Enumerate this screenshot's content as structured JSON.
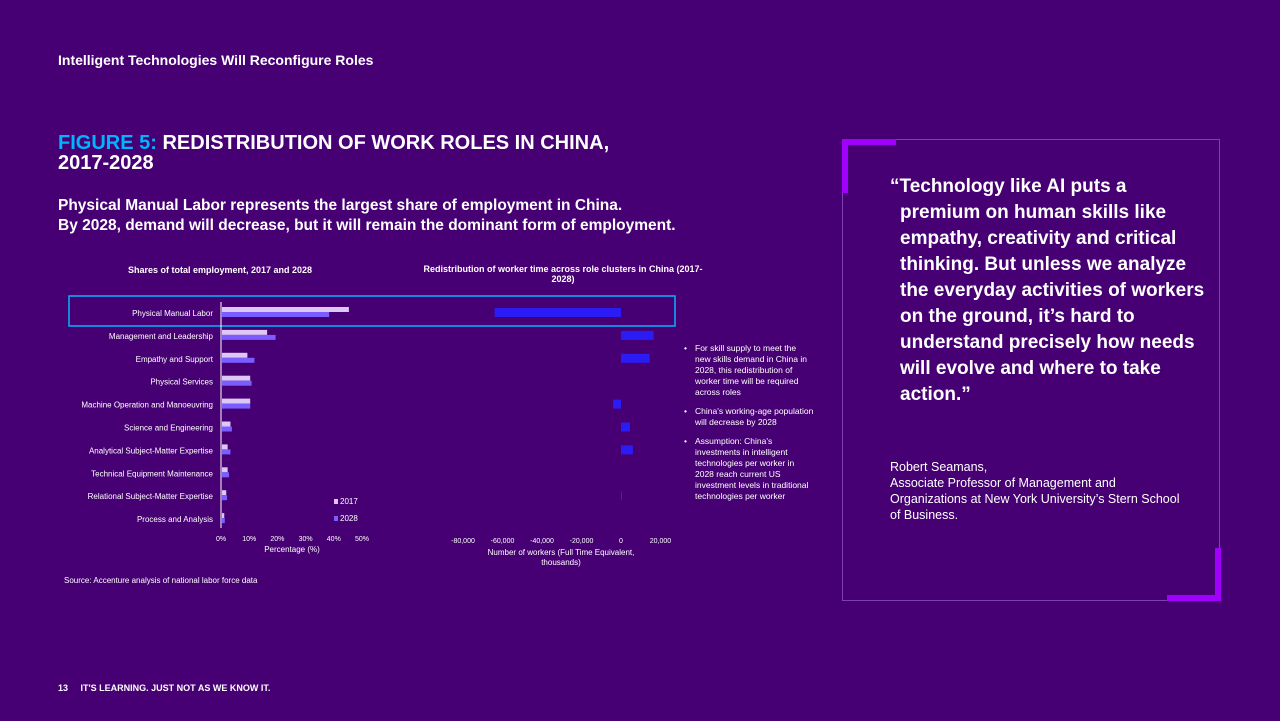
{
  "header": {
    "section_title": "Intelligent Technologies  Will Reconfigure Roles"
  },
  "figure": {
    "label": "FIGURE 5:",
    "title": "REDISTRIBUTION OF WORK ROLES IN CHINA, 2017-2028",
    "subtitle_line1": "Physical Manual Labor represents the largest share of employment in China.",
    "subtitle_line2": "By 2028, demand will decrease, but it will remain the dominant form of employment."
  },
  "chart_data": [
    {
      "type": "bar",
      "orientation": "horizontal",
      "title": "Shares of total employment, 2017 and 2028",
      "xlabel": "Percentage (%)",
      "categories": [
        "Physical Manual Labor",
        "Management and Leadership",
        "Empathy and Support",
        "Physical Services",
        "Machine Operation and Manoeuvring",
        "Science and Engineering",
        "Analytical Subject-Matter Expertise",
        "Technical Equipment Maintenance",
        "Relational Subject-Matter Expertise",
        "Process and Analysis"
      ],
      "series": [
        {
          "name": "2017",
          "color": "#dcc7f5",
          "values": [
            45,
            16,
            9,
            10,
            10,
            3,
            2,
            2,
            1.5,
            0.8
          ]
        },
        {
          "name": "2028",
          "color": "#7b5cff",
          "values": [
            38,
            19,
            11.5,
            10.5,
            10,
            3.5,
            3,
            2.5,
            1.8,
            1
          ]
        }
      ],
      "xlim": [
        0,
        50
      ],
      "xticks": [
        "0%",
        "10%",
        "20%",
        "30%",
        "40%",
        "50%"
      ],
      "legend": "bottom-right"
    },
    {
      "type": "bar",
      "orientation": "horizontal",
      "title": "Redistribution of worker time across role clusters in China (2017-2028)",
      "xlabel": "Number of workers (Full Time Equivalent, thousands)",
      "categories": [
        "Physical Manual Labor",
        "Management and Leadership",
        "Empathy and Support",
        "Physical Services",
        "Machine Operation and Manoeuvring",
        "Science and Engineering",
        "Analytical Subject-Matter Expertise",
        "Technical Equipment Maintenance",
        "Relational Subject-Matter Expertise",
        "Process and Analysis"
      ],
      "series": [
        {
          "color": "#2b1cf5",
          "values": [
            -64000,
            16500,
            14500,
            0,
            -4000,
            4500,
            6000,
            0,
            200,
            0
          ]
        }
      ],
      "xlim": [
        -80000,
        20000
      ],
      "xticks": [
        "-80,000",
        "-60,000",
        "-40,000",
        "-20,000",
        "0",
        "20,000"
      ]
    }
  ],
  "notes": [
    "For skill supply to meet the new skills demand in China in 2028, this redistribution of worker time will be required across roles",
    "China's working-age population will decrease by 2028",
    "Assumption: China's investments in intelligent technologies per worker in 2028 reach current US investment levels in traditional technologies per worker"
  ],
  "source": "Source: Accenture analysis of national labor force data",
  "footer": {
    "page": "13",
    "text": "IT'S LEARNING. JUST NOT AS WE KNOW IT."
  },
  "quote": {
    "text": "“Technology like AI puts a premium on human skills like empathy, creativity and critical thinking. But unless we analyze the everyday activities of workers on the ground, it’s hard to understand precisely how needs will evolve and where to take action.”",
    "author_name": "Robert Seamans,",
    "author_title": "Associate Professor of Management and Organizations at New York University’s Stern School of Business."
  },
  "colors": {
    "background": "#460073",
    "accent_blue": "#00b4ff",
    "accent_purple": "#a100ff",
    "highlight_box": "#00b4ff"
  }
}
